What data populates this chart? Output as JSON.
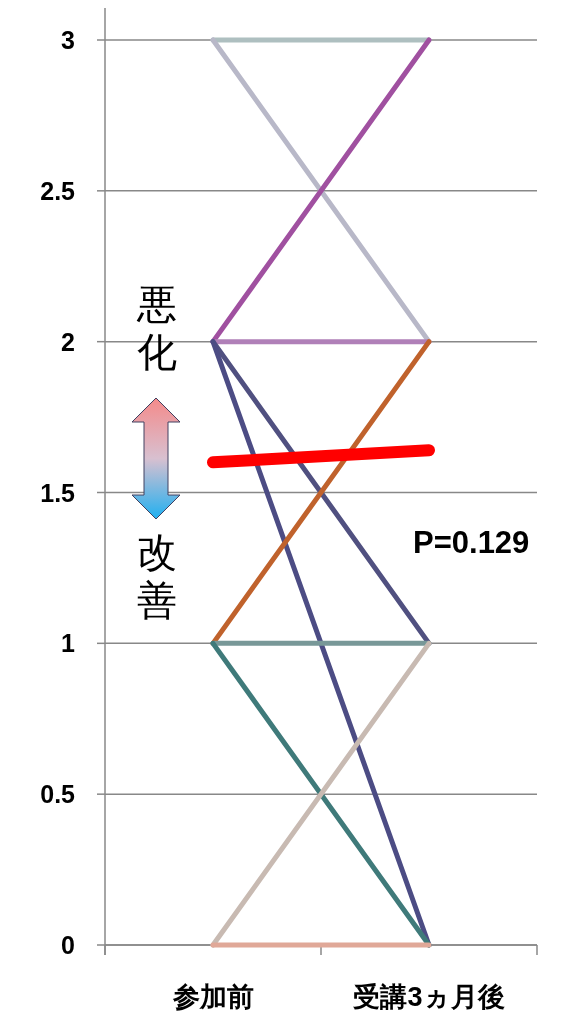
{
  "chart_data": {
    "type": "line",
    "categories": [
      "参加前",
      "受講3ヵ月後"
    ],
    "series": [
      {
        "color": "#aebfc0",
        "values": [
          3,
          3
        ]
      },
      {
        "color": "#b8b8c8",
        "values": [
          3,
          2
        ]
      },
      {
        "color": "#a050a0",
        "values": [
          2,
          3
        ]
      },
      {
        "color": "#b080b8",
        "values": [
          2,
          2
        ]
      },
      {
        "color": "#505080",
        "values": [
          2,
          1
        ]
      },
      {
        "color": "#4c4c84",
        "values": [
          2,
          0
        ]
      },
      {
        "color": "#c0622c",
        "values": [
          1,
          2
        ]
      },
      {
        "color": "#789898",
        "values": [
          1,
          1
        ]
      },
      {
        "color": "#3f7a7a",
        "values": [
          1,
          0
        ]
      },
      {
        "color": "#c8bab2",
        "values": [
          0,
          1
        ]
      },
      {
        "color": "#e0a898",
        "values": [
          0,
          0
        ]
      },
      {
        "color": "#ff0000",
        "values": [
          1.6,
          1.64
        ]
      }
    ],
    "annotations": [
      "悪化",
      "改善",
      "P=0.129"
    ],
    "ylim": [
      0,
      3
    ],
    "yticks": [
      0,
      0.5,
      1,
      1.5,
      2,
      2.5,
      3
    ],
    "grid": "y"
  }
}
